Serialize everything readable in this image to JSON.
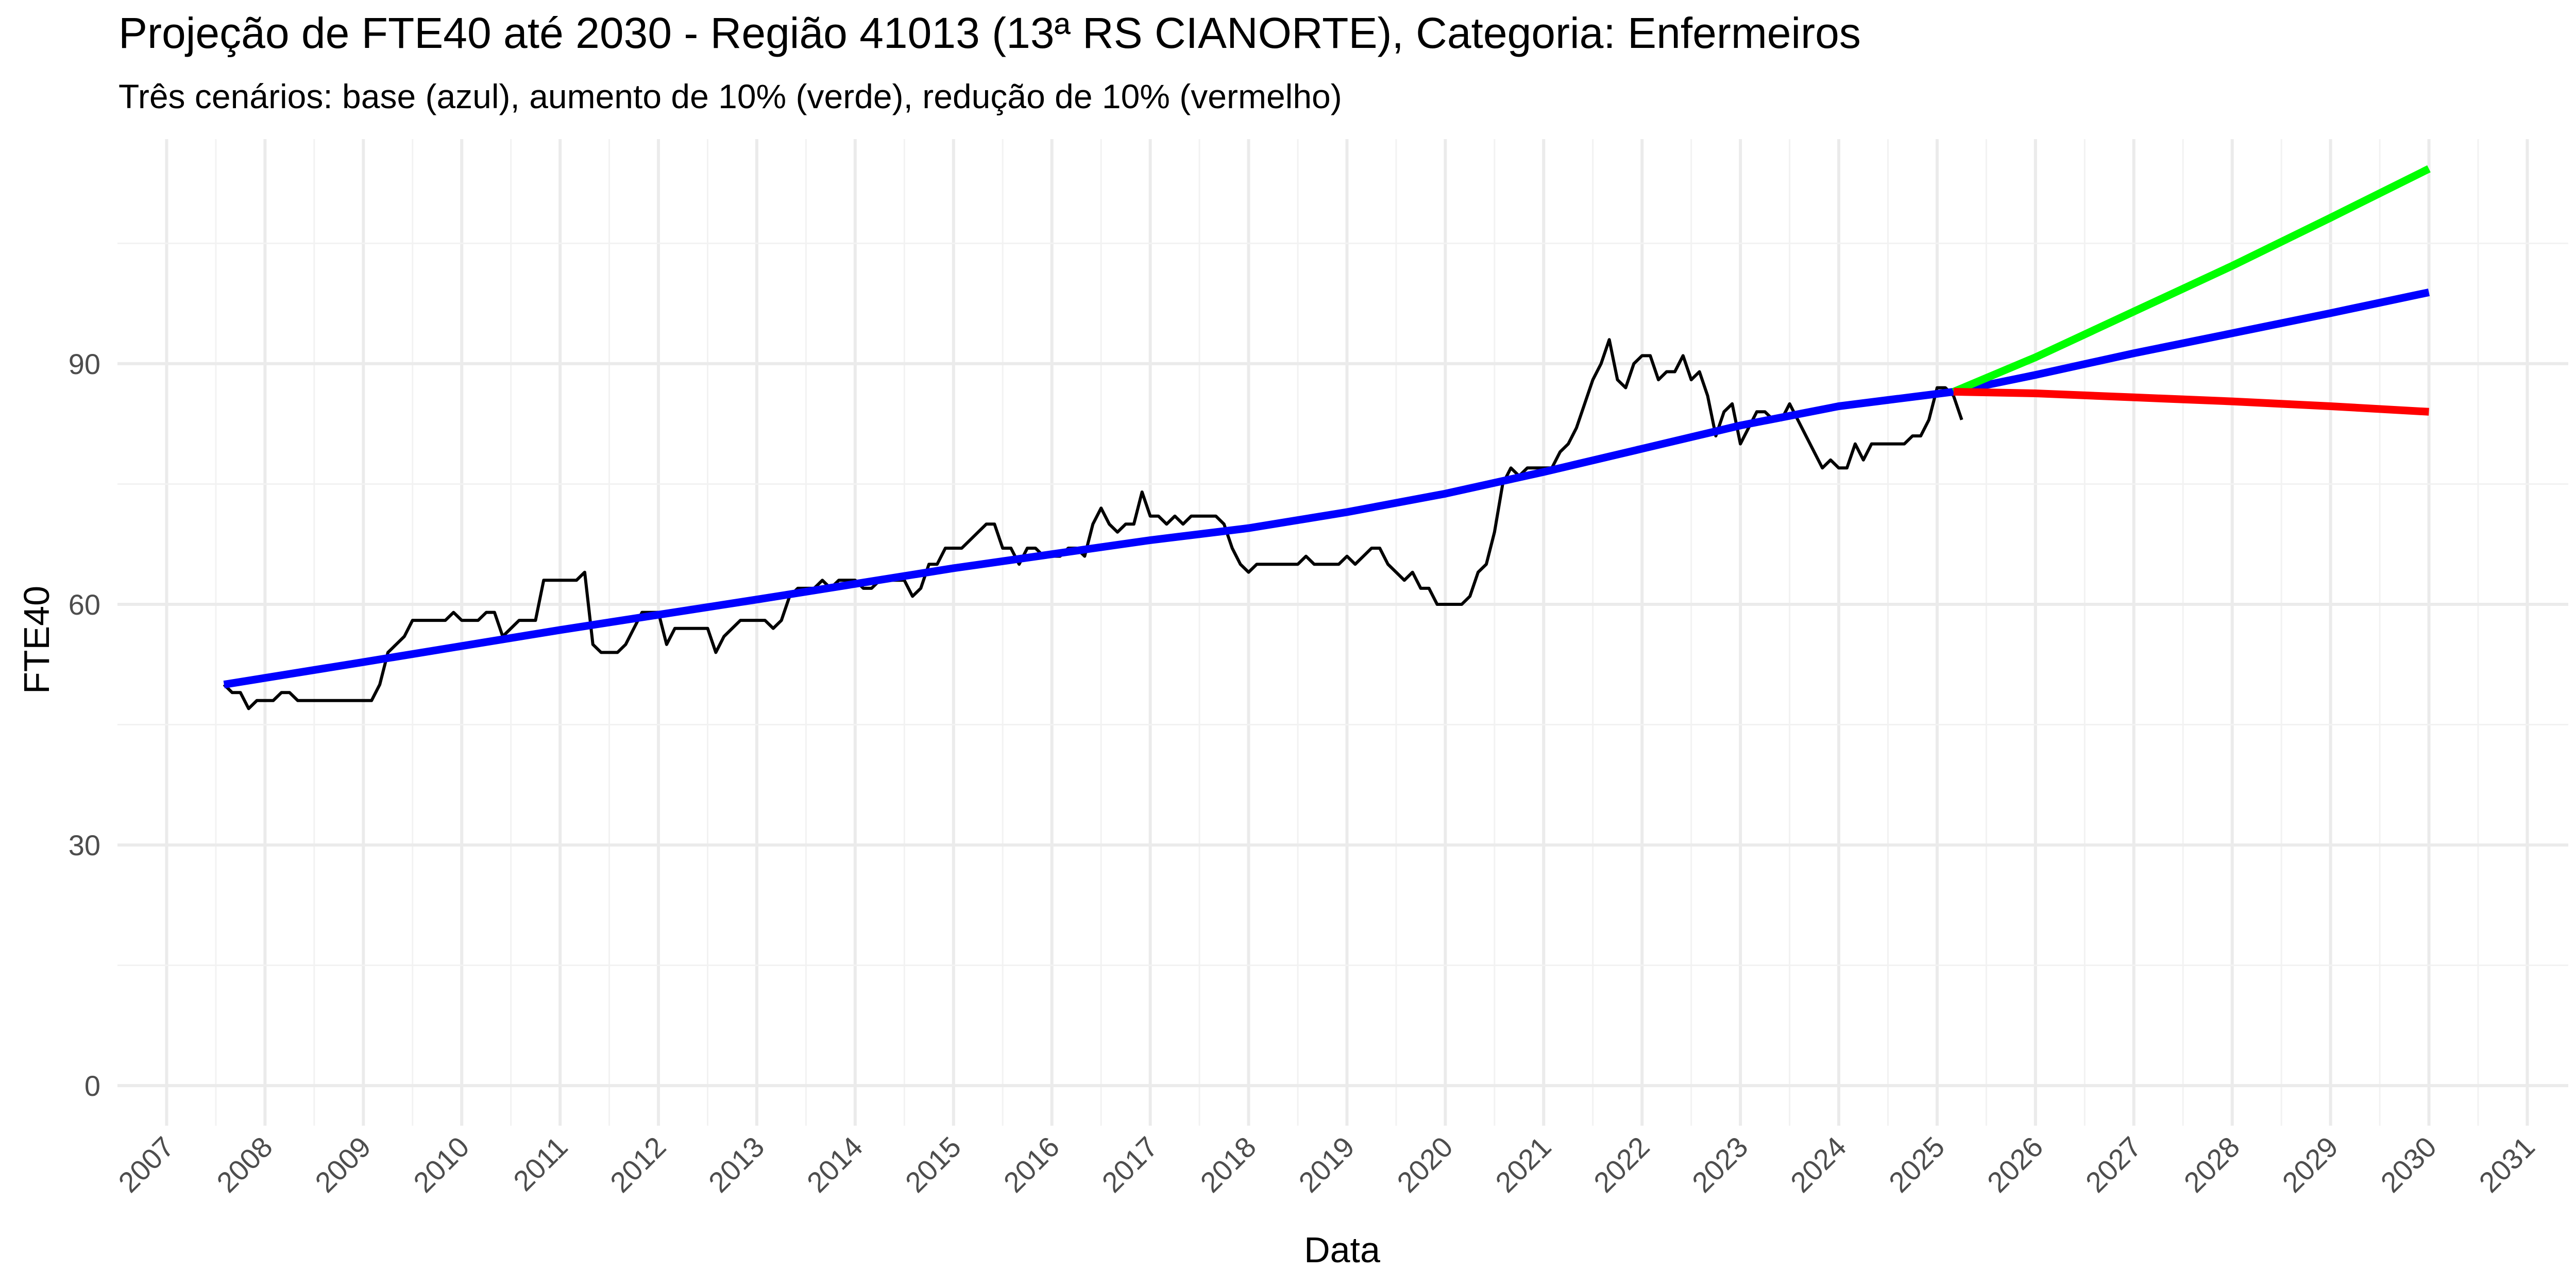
{
  "chart_data": {
    "type": "line",
    "title": "Projeção de FTE40 até 2030 - Região 41013 (13ª RS CIANORTE), Categoria: Enfermeiros",
    "subtitle": "Três cenários: base (azul), aumento de 10% (verde), redução de 10% (vermelho)",
    "xlabel": "Data",
    "ylabel": "FTE40",
    "x_range": [
      "2006-07-01",
      "2031-06-01"
    ],
    "ylim": [
      -5,
      118
    ],
    "y_ticks": [
      0,
      30,
      60,
      90
    ],
    "x_ticks": [
      "2007",
      "2008",
      "2009",
      "2010",
      "2011",
      "2012",
      "2013",
      "2014",
      "2015",
      "2016",
      "2017",
      "2018",
      "2019",
      "2020",
      "2021",
      "2022",
      "2023",
      "2024",
      "2025",
      "2026",
      "2027",
      "2028",
      "2029",
      "2030",
      "2031"
    ],
    "grid": true,
    "legend": "none",
    "series": [
      {
        "name": "",
        "color": "#000000",
        "points": [
          [
            "2007-08",
            50
          ],
          [
            "2007-09",
            49
          ],
          [
            "2007-10",
            49
          ],
          [
            "2007-11",
            47
          ],
          [
            "2007-12",
            48
          ],
          [
            "2008-01",
            48
          ],
          [
            "2008-02",
            48
          ],
          [
            "2008-03",
            49
          ],
          [
            "2008-04",
            49
          ],
          [
            "2008-05",
            48
          ],
          [
            "2008-06",
            48
          ],
          [
            "2008-07",
            48
          ],
          [
            "2008-08",
            48
          ],
          [
            "2008-09",
            48
          ],
          [
            "2008-10",
            48
          ],
          [
            "2008-11",
            48
          ],
          [
            "2008-12",
            48
          ],
          [
            "2009-01",
            48
          ],
          [
            "2009-02",
            48
          ],
          [
            "2009-03",
            50
          ],
          [
            "2009-04",
            54
          ],
          [
            "2009-05",
            55
          ],
          [
            "2009-06",
            56
          ],
          [
            "2009-07",
            58
          ],
          [
            "2009-08",
            58
          ],
          [
            "2009-09",
            58
          ],
          [
            "2009-10",
            58
          ],
          [
            "2009-11",
            58
          ],
          [
            "2009-12",
            59
          ],
          [
            "2010-01",
            58
          ],
          [
            "2010-02",
            58
          ],
          [
            "2010-03",
            58
          ],
          [
            "2010-04",
            59
          ],
          [
            "2010-05",
            59
          ],
          [
            "2010-06",
            56
          ],
          [
            "2010-07",
            57
          ],
          [
            "2010-08",
            58
          ],
          [
            "2010-09",
            58
          ],
          [
            "2010-10",
            58
          ],
          [
            "2010-11",
            63
          ],
          [
            "2010-12",
            63
          ],
          [
            "2011-01",
            63
          ],
          [
            "2011-02",
            63
          ],
          [
            "2011-03",
            63
          ],
          [
            "2011-04",
            64
          ],
          [
            "2011-05",
            55
          ],
          [
            "2011-06",
            54
          ],
          [
            "2011-07",
            54
          ],
          [
            "2011-08",
            54
          ],
          [
            "2011-09",
            55
          ],
          [
            "2011-10",
            57
          ],
          [
            "2011-11",
            59
          ],
          [
            "2011-12",
            59
          ],
          [
            "2012-01",
            59
          ],
          [
            "2012-02",
            55
          ],
          [
            "2012-03",
            57
          ],
          [
            "2012-04",
            57
          ],
          [
            "2012-05",
            57
          ],
          [
            "2012-06",
            57
          ],
          [
            "2012-07",
            57
          ],
          [
            "2012-08",
            54
          ],
          [
            "2012-09",
            56
          ],
          [
            "2012-10",
            57
          ],
          [
            "2012-11",
            58
          ],
          [
            "2012-12",
            58
          ],
          [
            "2013-01",
            58
          ],
          [
            "2013-02",
            58
          ],
          [
            "2013-03",
            57
          ],
          [
            "2013-04",
            58
          ],
          [
            "2013-05",
            61
          ],
          [
            "2013-06",
            62
          ],
          [
            "2013-07",
            62
          ],
          [
            "2013-08",
            62
          ],
          [
            "2013-09",
            63
          ],
          [
            "2013-10",
            62
          ],
          [
            "2013-11",
            63
          ],
          [
            "2013-12",
            63
          ],
          [
            "2014-01",
            63
          ],
          [
            "2014-02",
            62
          ],
          [
            "2014-03",
            62
          ],
          [
            "2014-04",
            63
          ],
          [
            "2014-05",
            63
          ],
          [
            "2014-06",
            63
          ],
          [
            "2014-07",
            63
          ],
          [
            "2014-08",
            61
          ],
          [
            "2014-09",
            62
          ],
          [
            "2014-10",
            65
          ],
          [
            "2014-11",
            65
          ],
          [
            "2014-12",
            67
          ],
          [
            "2015-01",
            67
          ],
          [
            "2015-02",
            67
          ],
          [
            "2015-03",
            68
          ],
          [
            "2015-04",
            69
          ],
          [
            "2015-05",
            70
          ],
          [
            "2015-06",
            70
          ],
          [
            "2015-07",
            67
          ],
          [
            "2015-08",
            67
          ],
          [
            "2015-09",
            65
          ],
          [
            "2015-10",
            67
          ],
          [
            "2015-11",
            67
          ],
          [
            "2015-12",
            66
          ],
          [
            "2016-01",
            66
          ],
          [
            "2016-02",
            66
          ],
          [
            "2016-03",
            67
          ],
          [
            "2016-04",
            67
          ],
          [
            "2016-05",
            66
          ],
          [
            "2016-06",
            70
          ],
          [
            "2016-07",
            72
          ],
          [
            "2016-08",
            70
          ],
          [
            "2016-09",
            69
          ],
          [
            "2016-10",
            70
          ],
          [
            "2016-11",
            70
          ],
          [
            "2016-12",
            74
          ],
          [
            "2017-01",
            71
          ],
          [
            "2017-02",
            71
          ],
          [
            "2017-03",
            70
          ],
          [
            "2017-04",
            71
          ],
          [
            "2017-05",
            70
          ],
          [
            "2017-06",
            71
          ],
          [
            "2017-07",
            71
          ],
          [
            "2017-08",
            71
          ],
          [
            "2017-09",
            71
          ],
          [
            "2017-10",
            70
          ],
          [
            "2017-11",
            67
          ],
          [
            "2017-12",
            65
          ],
          [
            "2018-01",
            64
          ],
          [
            "2018-02",
            65
          ],
          [
            "2018-03",
            65
          ],
          [
            "2018-04",
            65
          ],
          [
            "2018-05",
            65
          ],
          [
            "2018-06",
            65
          ],
          [
            "2018-07",
            65
          ],
          [
            "2018-08",
            66
          ],
          [
            "2018-09",
            65
          ],
          [
            "2018-10",
            65
          ],
          [
            "2018-11",
            65
          ],
          [
            "2018-12",
            65
          ],
          [
            "2019-01",
            66
          ],
          [
            "2019-02",
            65
          ],
          [
            "2019-03",
            66
          ],
          [
            "2019-04",
            67
          ],
          [
            "2019-05",
            67
          ],
          [
            "2019-06",
            65
          ],
          [
            "2019-07",
            64
          ],
          [
            "2019-08",
            63
          ],
          [
            "2019-09",
            64
          ],
          [
            "2019-10",
            62
          ],
          [
            "2019-11",
            62
          ],
          [
            "2019-12",
            60
          ],
          [
            "2020-01",
            60
          ],
          [
            "2020-02",
            60
          ],
          [
            "2020-03",
            60
          ],
          [
            "2020-04",
            61
          ],
          [
            "2020-05",
            64
          ],
          [
            "2020-06",
            65
          ],
          [
            "2020-07",
            69
          ],
          [
            "2020-08",
            75
          ],
          [
            "2020-09",
            77
          ],
          [
            "2020-10",
            76
          ],
          [
            "2020-11",
            77
          ],
          [
            "2020-12",
            77
          ],
          [
            "2021-01",
            77
          ],
          [
            "2021-02",
            77
          ],
          [
            "2021-03",
            79
          ],
          [
            "2021-04",
            80
          ],
          [
            "2021-05",
            82
          ],
          [
            "2021-06",
            85
          ],
          [
            "2021-07",
            88
          ],
          [
            "2021-08",
            90
          ],
          [
            "2021-09",
            93
          ],
          [
            "2021-10",
            88
          ],
          [
            "2021-11",
            87
          ],
          [
            "2021-12",
            90
          ],
          [
            "2022-01",
            91
          ],
          [
            "2022-02",
            91
          ],
          [
            "2022-03",
            88
          ],
          [
            "2022-04",
            89
          ],
          [
            "2022-05",
            89
          ],
          [
            "2022-06",
            91
          ],
          [
            "2022-07",
            88
          ],
          [
            "2022-08",
            89
          ],
          [
            "2022-09",
            86
          ],
          [
            "2022-10",
            81
          ],
          [
            "2022-11",
            84
          ],
          [
            "2022-12",
            85
          ],
          [
            "2023-01",
            80
          ],
          [
            "2023-02",
            82
          ],
          [
            "2023-03",
            84
          ],
          [
            "2023-04",
            84
          ],
          [
            "2023-05",
            83
          ],
          [
            "2023-06",
            83
          ],
          [
            "2023-07",
            85
          ],
          [
            "2023-08",
            83
          ],
          [
            "2023-09",
            81
          ],
          [
            "2023-10",
            79
          ],
          [
            "2023-11",
            77
          ],
          [
            "2023-12",
            78
          ],
          [
            "2024-01",
            77
          ],
          [
            "2024-02",
            77
          ],
          [
            "2024-03",
            80
          ],
          [
            "2024-04",
            78
          ],
          [
            "2024-05",
            80
          ],
          [
            "2024-06",
            80
          ],
          [
            "2024-07",
            80
          ],
          [
            "2024-08",
            80
          ],
          [
            "2024-09",
            80
          ],
          [
            "2024-10",
            81
          ],
          [
            "2024-11",
            81
          ],
          [
            "2024-12",
            83
          ],
          [
            "2025-01",
            87
          ],
          [
            "2025-02",
            87
          ],
          [
            "2025-03",
            86
          ],
          [
            "2025-04",
            83
          ]
        ]
      },
      {
        "name": "",
        "color": "#0000ff",
        "points": [
          [
            "2007-08",
            50
          ],
          [
            "2009-01",
            52.8
          ],
          [
            "2011-01",
            56.8
          ],
          [
            "2013-01",
            60.6
          ],
          [
            "2015-01",
            64.5
          ],
          [
            "2017-01",
            68
          ],
          [
            "2018-01",
            69.5
          ],
          [
            "2019-01",
            71.5
          ],
          [
            "2020-01",
            73.8
          ],
          [
            "2021-01",
            76.5
          ],
          [
            "2022-01",
            79.4
          ],
          [
            "2023-01",
            82.3
          ],
          [
            "2024-01",
            84.7
          ],
          [
            "2025-03",
            86.5
          ],
          [
            "2026-01",
            88.6
          ],
          [
            "2027-01",
            91.3
          ],
          [
            "2028-01",
            93.8
          ],
          [
            "2029-01",
            96.3
          ],
          [
            "2030-01",
            98.9
          ]
        ]
      },
      {
        "name": "",
        "color": "#00ff00",
        "points": [
          [
            "2025-03",
            86.5
          ],
          [
            "2026-01",
            90.8
          ],
          [
            "2027-01",
            96.5
          ],
          [
            "2028-01",
            102.2
          ],
          [
            "2029-01",
            108.2
          ],
          [
            "2030-01",
            114.3
          ]
        ]
      },
      {
        "name": "",
        "color": "#ff0000",
        "points": [
          [
            "2025-03",
            86.5
          ],
          [
            "2026-01",
            86.3
          ],
          [
            "2027-01",
            85.8
          ],
          [
            "2028-01",
            85.3
          ],
          [
            "2029-01",
            84.7
          ],
          [
            "2030-01",
            84
          ]
        ]
      }
    ]
  }
}
